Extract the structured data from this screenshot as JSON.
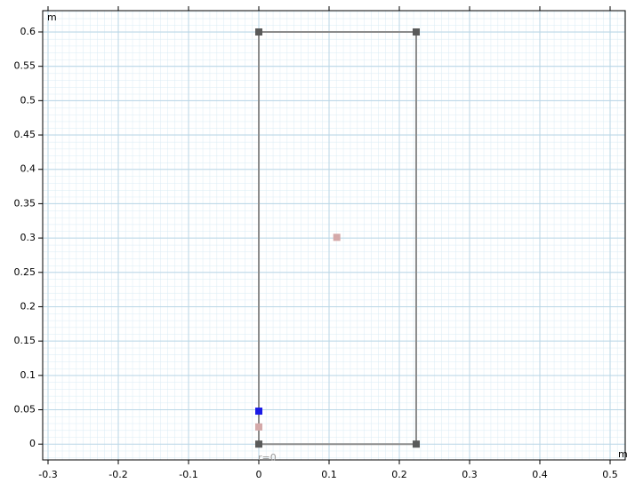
{
  "chart_data": {
    "type": "geometry",
    "x_unit": "m",
    "y_unit": "m",
    "annotation": "r=0",
    "xlim": [
      -0.3076,
      0.5215
    ],
    "ylim": [
      -0.023,
      0.631
    ],
    "xticks": [
      -0.3,
      -0.2,
      -0.1,
      0,
      0.1,
      0.2,
      0.3,
      0.4,
      0.5
    ],
    "yticks": [
      0,
      0.05,
      0.1,
      0.15,
      0.2,
      0.25,
      0.3,
      0.35,
      0.4,
      0.45,
      0.5,
      0.55,
      0.6
    ],
    "grid": true,
    "series": [
      {
        "kind": "outline",
        "color": "#8c8c8c",
        "x": [
          0,
          0.224,
          0.224,
          0,
          0
        ],
        "values": [
          0,
          0,
          0.6,
          0.6,
          0
        ]
      },
      {
        "kind": "points",
        "color": "#d4a9a9",
        "x": [
          0.111,
          0
        ],
        "values": [
          0.301,
          0.025
        ]
      },
      {
        "kind": "points",
        "color": "#1a1ae6",
        "x": [
          0
        ],
        "values": [
          0.048
        ]
      }
    ]
  }
}
